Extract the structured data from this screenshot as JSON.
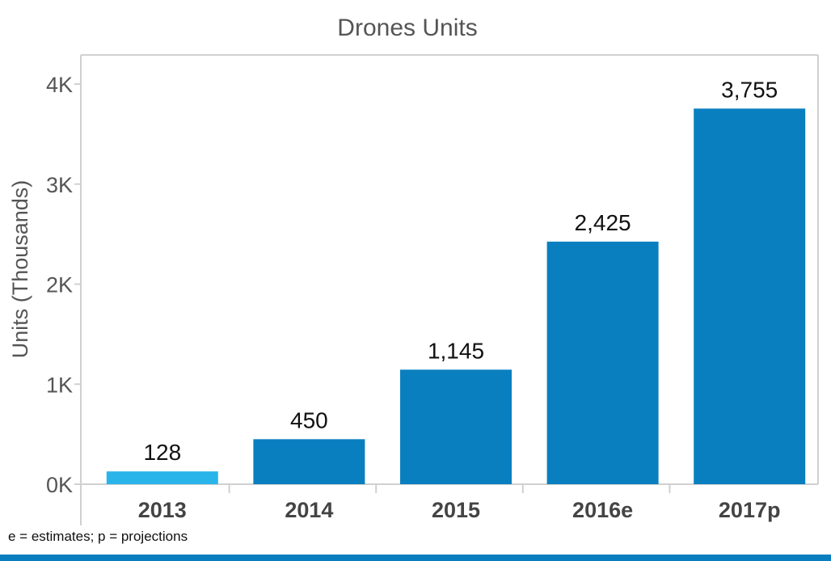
{
  "chart_data": {
    "type": "bar",
    "title": "Drones Units",
    "ylabel": "Units (Thousands)",
    "xlabel": "",
    "categories": [
      "2013",
      "2014",
      "2015",
      "2016e",
      "2017p"
    ],
    "values": [
      128,
      450,
      1145,
      2425,
      3755
    ],
    "value_labels": [
      "128",
      "450",
      "1,145",
      "2,425",
      "3,755"
    ],
    "ylim": [
      0,
      4000
    ],
    "yticks": [
      0,
      1000,
      2000,
      3000,
      4000
    ],
    "ytick_labels": [
      "0K",
      "1K",
      "2K",
      "3K",
      "4K"
    ],
    "grid": false,
    "colors": {
      "highlight": "#29b5ea",
      "bar": "#0a7fc0",
      "axis": "#d0d0d0",
      "text": "#555555",
      "label": "#111111",
      "category": "#444444"
    },
    "highlight_index": 0
  },
  "footnote": "e = estimates; p = projections"
}
